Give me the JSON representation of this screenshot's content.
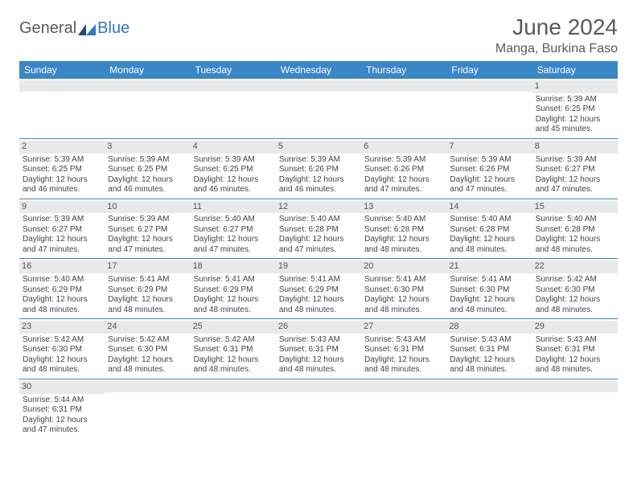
{
  "logo": {
    "part1": "General",
    "part2": "Blue"
  },
  "title": "June 2024",
  "location": "Manga, Burkina Faso",
  "colors": {
    "header_bg": "#3a87c7",
    "header_text": "#ffffff",
    "daynum_bg": "#e9e9e9",
    "rule": "#3a87c7",
    "text": "#444444",
    "title_text": "#5a5a5a",
    "logo_blue": "#2f7bbf"
  },
  "weekdays": [
    "Sunday",
    "Monday",
    "Tuesday",
    "Wednesday",
    "Thursday",
    "Friday",
    "Saturday"
  ],
  "weeks": [
    [
      null,
      null,
      null,
      null,
      null,
      null,
      {
        "n": "1",
        "sunrise": "5:39 AM",
        "sunset": "6:25 PM",
        "daylight": "12 hours and 45 minutes."
      }
    ],
    [
      {
        "n": "2",
        "sunrise": "5:39 AM",
        "sunset": "6:25 PM",
        "daylight": "12 hours and 46 minutes."
      },
      {
        "n": "3",
        "sunrise": "5:39 AM",
        "sunset": "6:25 PM",
        "daylight": "12 hours and 46 minutes."
      },
      {
        "n": "4",
        "sunrise": "5:39 AM",
        "sunset": "6:25 PM",
        "daylight": "12 hours and 46 minutes."
      },
      {
        "n": "5",
        "sunrise": "5:39 AM",
        "sunset": "6:26 PM",
        "daylight": "12 hours and 46 minutes."
      },
      {
        "n": "6",
        "sunrise": "5:39 AM",
        "sunset": "6:26 PM",
        "daylight": "12 hours and 47 minutes."
      },
      {
        "n": "7",
        "sunrise": "5:39 AM",
        "sunset": "6:26 PM",
        "daylight": "12 hours and 47 minutes."
      },
      {
        "n": "8",
        "sunrise": "5:39 AM",
        "sunset": "6:27 PM",
        "daylight": "12 hours and 47 minutes."
      }
    ],
    [
      {
        "n": "9",
        "sunrise": "5:39 AM",
        "sunset": "6:27 PM",
        "daylight": "12 hours and 47 minutes."
      },
      {
        "n": "10",
        "sunrise": "5:39 AM",
        "sunset": "6:27 PM",
        "daylight": "12 hours and 47 minutes."
      },
      {
        "n": "11",
        "sunrise": "5:40 AM",
        "sunset": "6:27 PM",
        "daylight": "12 hours and 47 minutes."
      },
      {
        "n": "12",
        "sunrise": "5:40 AM",
        "sunset": "6:28 PM",
        "daylight": "12 hours and 47 minutes."
      },
      {
        "n": "13",
        "sunrise": "5:40 AM",
        "sunset": "6:28 PM",
        "daylight": "12 hours and 48 minutes."
      },
      {
        "n": "14",
        "sunrise": "5:40 AM",
        "sunset": "6:28 PM",
        "daylight": "12 hours and 48 minutes."
      },
      {
        "n": "15",
        "sunrise": "5:40 AM",
        "sunset": "6:28 PM",
        "daylight": "12 hours and 48 minutes."
      }
    ],
    [
      {
        "n": "16",
        "sunrise": "5:40 AM",
        "sunset": "6:29 PM",
        "daylight": "12 hours and 48 minutes."
      },
      {
        "n": "17",
        "sunrise": "5:41 AM",
        "sunset": "6:29 PM",
        "daylight": "12 hours and 48 minutes."
      },
      {
        "n": "18",
        "sunrise": "5:41 AM",
        "sunset": "6:29 PM",
        "daylight": "12 hours and 48 minutes."
      },
      {
        "n": "19",
        "sunrise": "5:41 AM",
        "sunset": "6:29 PM",
        "daylight": "12 hours and 48 minutes."
      },
      {
        "n": "20",
        "sunrise": "5:41 AM",
        "sunset": "6:30 PM",
        "daylight": "12 hours and 48 minutes."
      },
      {
        "n": "21",
        "sunrise": "5:41 AM",
        "sunset": "6:30 PM",
        "daylight": "12 hours and 48 minutes."
      },
      {
        "n": "22",
        "sunrise": "5:42 AM",
        "sunset": "6:30 PM",
        "daylight": "12 hours and 48 minutes."
      }
    ],
    [
      {
        "n": "23",
        "sunrise": "5:42 AM",
        "sunset": "6:30 PM",
        "daylight": "12 hours and 48 minutes."
      },
      {
        "n": "24",
        "sunrise": "5:42 AM",
        "sunset": "6:30 PM",
        "daylight": "12 hours and 48 minutes."
      },
      {
        "n": "25",
        "sunrise": "5:42 AM",
        "sunset": "6:31 PM",
        "daylight": "12 hours and 48 minutes."
      },
      {
        "n": "26",
        "sunrise": "5:43 AM",
        "sunset": "6:31 PM",
        "daylight": "12 hours and 48 minutes."
      },
      {
        "n": "27",
        "sunrise": "5:43 AM",
        "sunset": "6:31 PM",
        "daylight": "12 hours and 48 minutes."
      },
      {
        "n": "28",
        "sunrise": "5:43 AM",
        "sunset": "6:31 PM",
        "daylight": "12 hours and 48 minutes."
      },
      {
        "n": "29",
        "sunrise": "5:43 AM",
        "sunset": "6:31 PM",
        "daylight": "12 hours and 48 minutes."
      }
    ],
    [
      {
        "n": "30",
        "sunrise": "5:44 AM",
        "sunset": "6:31 PM",
        "daylight": "12 hours and 47 minutes."
      },
      null,
      null,
      null,
      null,
      null,
      null
    ]
  ],
  "labels": {
    "sunrise": "Sunrise:",
    "sunset": "Sunset:",
    "daylight": "Daylight:"
  }
}
